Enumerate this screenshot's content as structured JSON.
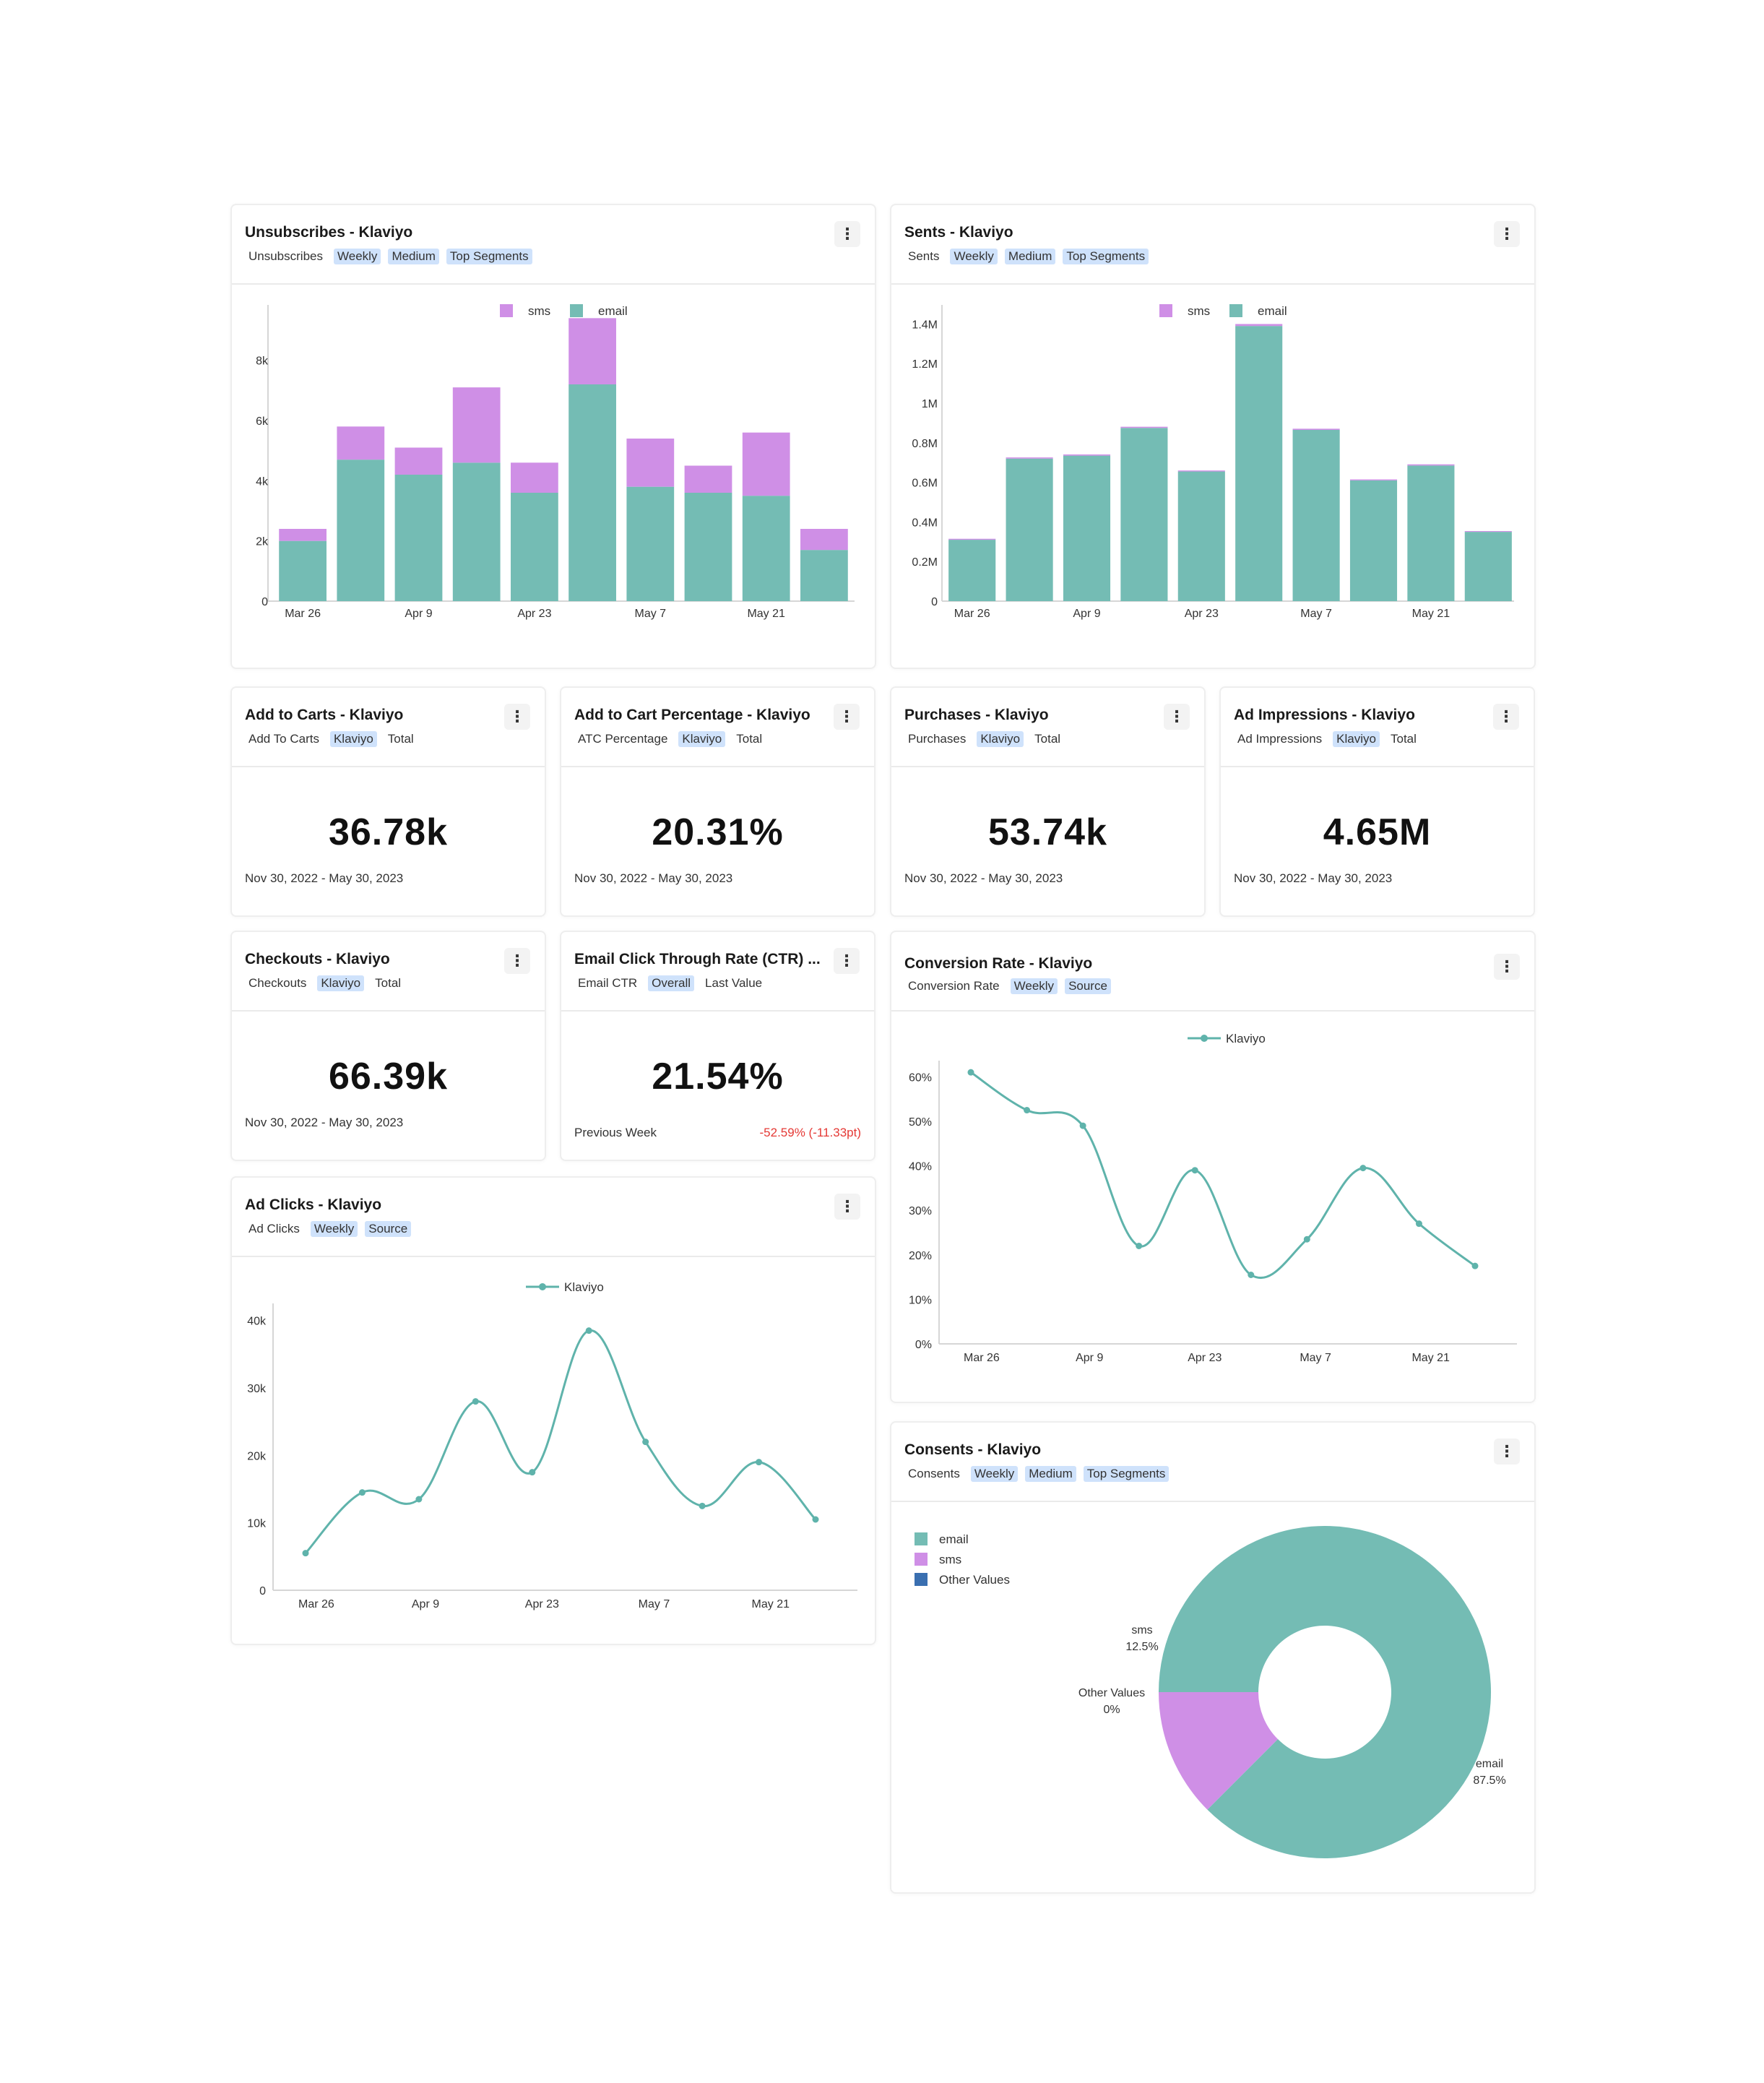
{
  "colors": {
    "email": "#74bcb4",
    "sms": "#cf8fe6",
    "other": "#3a6fb0",
    "line": "#5fb3ab"
  },
  "unsubscribes": {
    "title": "Unsubscribes - Klaviyo",
    "chips": [
      "Unsubscribes",
      "Weekly",
      "Medium",
      "Top Segments"
    ],
    "legend": [
      "sms",
      "email"
    ],
    "yticks": [
      "0",
      "2k",
      "4k",
      "6k",
      "8k"
    ],
    "xticks": [
      "Mar 26",
      "Apr 9",
      "Apr 23",
      "May 7",
      "May 21"
    ]
  },
  "sents": {
    "title": "Sents - Klaviyo",
    "chips": [
      "Sents",
      "Weekly",
      "Medium",
      "Top Segments"
    ],
    "legend": [
      "sms",
      "email"
    ],
    "yticks": [
      "0",
      "0.2M",
      "0.4M",
      "0.6M",
      "0.8M",
      "1M",
      "1.2M",
      "1.4M"
    ],
    "xticks": [
      "Mar 26",
      "Apr 9",
      "Apr 23",
      "May 7",
      "May 21"
    ]
  },
  "kpis": {
    "add_to_carts": {
      "title": "Add to Carts - Klaviyo",
      "chips": [
        "Add To Carts",
        "Klaviyo",
        "Total"
      ],
      "value": "36.78k",
      "date": "Nov 30, 2022 - May 30, 2023"
    },
    "atc_percentage": {
      "title": "Add to Cart Percentage - Klaviyo",
      "chips": [
        "ATC Percentage",
        "Klaviyo",
        "Total"
      ],
      "value": "20.31%",
      "date": "Nov 30, 2022 - May 30, 2023"
    },
    "purchases": {
      "title": "Purchases - Klaviyo",
      "chips": [
        "Purchases",
        "Klaviyo",
        "Total"
      ],
      "value": "53.74k",
      "date": "Nov 30, 2022 - May 30, 2023"
    },
    "ad_impressions": {
      "title": "Ad Impressions - Klaviyo",
      "chips": [
        "Ad Impressions",
        "Klaviyo",
        "Total"
      ],
      "value": "4.65M",
      "date": "Nov 30, 2022 - May 30, 2023"
    },
    "checkouts": {
      "title": "Checkouts - Klaviyo",
      "chips": [
        "Checkouts",
        "Klaviyo",
        "Total"
      ],
      "value": "66.39k",
      "date": "Nov 30, 2022 - May 30, 2023"
    },
    "email_ctr": {
      "title": "Email Click Through Rate (CTR) ...",
      "chips": [
        "Email CTR",
        "Overall",
        "Last Value"
      ],
      "value": "21.54%",
      "prev_label": "Previous Week",
      "delta": "-52.59% (-11.33pt)"
    }
  },
  "conversion_rate": {
    "title": "Conversion Rate - Klaviyo",
    "chips": [
      "Conversion Rate",
      "Weekly",
      "Source"
    ],
    "legend": "Klaviyo",
    "yticks": [
      "0%",
      "10%",
      "20%",
      "30%",
      "40%",
      "50%",
      "60%"
    ],
    "xticks": [
      "Mar 26",
      "Apr 9",
      "Apr 23",
      "May 7",
      "May 21"
    ]
  },
  "ad_clicks": {
    "title": "Ad Clicks - Klaviyo",
    "chips": [
      "Ad Clicks",
      "Weekly",
      "Source"
    ],
    "legend": "Klaviyo",
    "yticks": [
      "0",
      "10k",
      "20k",
      "30k",
      "40k"
    ],
    "xticks": [
      "Mar 26",
      "Apr 9",
      "Apr 23",
      "May 7",
      "May 21"
    ]
  },
  "consents": {
    "title": "Consents - Klaviyo",
    "chips": [
      "Consents",
      "Weekly",
      "Medium",
      "Top Segments"
    ],
    "legend": [
      "email",
      "sms",
      "Other Values"
    ],
    "labels": {
      "sms_name": "sms",
      "sms_pct": "12.5%",
      "other_name": "Other Values",
      "other_pct": "0%",
      "email_name": "email",
      "email_pct": "87.5%"
    }
  },
  "chart_data": [
    {
      "type": "bar",
      "stacked": true,
      "title": "Unsubscribes - Klaviyo",
      "categories": [
        "Mar 26",
        "Apr 2",
        "Apr 9",
        "Apr 16",
        "Apr 23",
        "Apr 30",
        "May 7",
        "May 14",
        "May 21",
        "May 28"
      ],
      "series": [
        {
          "name": "email",
          "values": [
            2000,
            4700,
            4200,
            4600,
            3600,
            7200,
            3800,
            3600,
            3500,
            1700
          ]
        },
        {
          "name": "sms",
          "values": [
            400,
            1100,
            900,
            2500,
            1000,
            2200,
            1600,
            900,
            2100,
            700
          ]
        }
      ],
      "ylim": [
        0,
        9600
      ]
    },
    {
      "type": "bar",
      "stacked": true,
      "title": "Sents - Klaviyo",
      "categories": [
        "Mar 26",
        "Apr 2",
        "Apr 9",
        "Apr 16",
        "Apr 23",
        "Apr 30",
        "May 7",
        "May 14",
        "May 21",
        "May 28"
      ],
      "series": [
        {
          "name": "email",
          "values": [
            310000,
            720000,
            735000,
            875000,
            655000,
            1390000,
            865000,
            610000,
            685000,
            350000
          ]
        },
        {
          "name": "sms",
          "values": [
            5000,
            6000,
            6000,
            6000,
            5000,
            10000,
            6000,
            5000,
            6000,
            4000
          ]
        }
      ],
      "ylim": [
        0,
        1460000
      ]
    },
    {
      "type": "line",
      "title": "Conversion Rate - Klaviyo",
      "x": [
        "Mar 26",
        "Apr 2",
        "Apr 9",
        "Apr 16",
        "Apr 23",
        "Apr 30",
        "May 7",
        "May 14",
        "May 21",
        "May 28"
      ],
      "series": [
        {
          "name": "Klaviyo",
          "values": [
            61,
            52.5,
            49,
            22,
            39,
            15.5,
            23.5,
            39.5,
            27,
            17.5
          ]
        }
      ],
      "ylim": [
        0,
        62
      ]
    },
    {
      "type": "line",
      "title": "Ad Clicks - Klaviyo",
      "x": [
        "Mar 26",
        "Apr 2",
        "Apr 9",
        "Apr 16",
        "Apr 23",
        "Apr 30",
        "May 7",
        "May 14",
        "May 21",
        "May 28"
      ],
      "series": [
        {
          "name": "Klaviyo",
          "values": [
            5500,
            14500,
            13500,
            28000,
            17500,
            38500,
            22000,
            12500,
            19000,
            10500
          ]
        }
      ],
      "ylim": [
        0,
        40500
      ]
    },
    {
      "type": "pie",
      "title": "Consents - Klaviyo",
      "categories": [
        "email",
        "sms",
        "Other Values"
      ],
      "values": [
        87.5,
        12.5,
        0
      ]
    }
  ]
}
